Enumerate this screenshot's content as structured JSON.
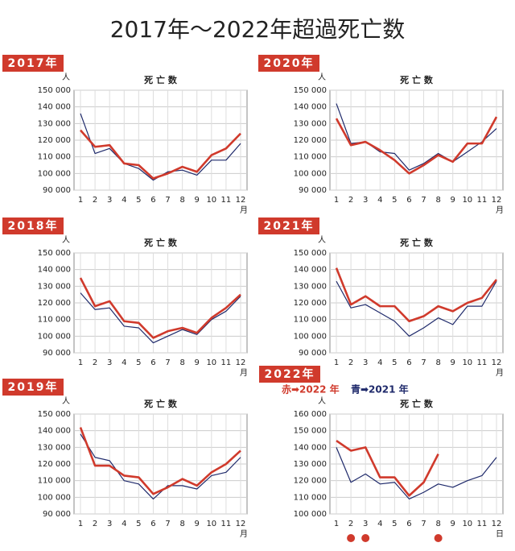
{
  "title": "2017年～2022年超過死亡数",
  "chart_data": [
    {
      "type": "line",
      "badge": "2017年",
      "title": "死 亡 数",
      "y_unit": "人",
      "x_unit": "月",
      "categories": [
        1,
        2,
        3,
        4,
        5,
        6,
        7,
        8,
        9,
        10,
        11,
        12
      ],
      "ylim": [
        90000,
        150000
      ],
      "yticks": [
        {
          "value": 90000,
          "label": "90 000"
        },
        {
          "value": 100000,
          "label": "100 000"
        },
        {
          "value": 110000,
          "label": "110 000"
        },
        {
          "value": 120000,
          "label": "120 000"
        },
        {
          "value": 130000,
          "label": "130 000"
        },
        {
          "value": 140000,
          "label": "140 000"
        },
        {
          "value": 150000,
          "label": "150 000"
        }
      ],
      "grid": true,
      "series": [
        {
          "color": "#1f2a6b",
          "values": [
            136000,
            112000,
            115000,
            106000,
            103000,
            96000,
            101000,
            102000,
            99000,
            108000,
            108000,
            118000
          ]
        },
        {
          "color": "#d03a2c",
          "values": [
            126000,
            116000,
            117000,
            106000,
            105000,
            97000,
            100000,
            104000,
            101000,
            111000,
            115000,
            124000
          ]
        }
      ]
    },
    {
      "type": "line",
      "badge": "2020年",
      "title": "死 亡 数",
      "y_unit": "人",
      "x_unit": "月",
      "categories": [
        1,
        2,
        3,
        4,
        5,
        6,
        7,
        8,
        9,
        10,
        11,
        12
      ],
      "ylim": [
        90000,
        150000
      ],
      "yticks": [
        {
          "value": 90000,
          "label": "90 000"
        },
        {
          "value": 100000,
          "label": "100 000"
        },
        {
          "value": 110000,
          "label": "110 000"
        },
        {
          "value": 120000,
          "label": "120 000"
        },
        {
          "value": 130000,
          "label": "130 000"
        },
        {
          "value": 140000,
          "label": "140 000"
        },
        {
          "value": 150000,
          "label": "150 000"
        }
      ],
      "grid": true,
      "series": [
        {
          "color": "#1f2a6b",
          "values": [
            142000,
            118000,
            119000,
            113000,
            112000,
            102000,
            106000,
            112000,
            107000,
            113000,
            119000,
            127000
          ]
        },
        {
          "color": "#d03a2c",
          "values": [
            133000,
            117000,
            119000,
            114000,
            108000,
            100000,
            105000,
            111000,
            107000,
            118000,
            118000,
            134000
          ]
        }
      ]
    },
    {
      "type": "line",
      "badge": "2018年",
      "title": "死 亡 数",
      "y_unit": "人",
      "x_unit": "月",
      "categories": [
        1,
        2,
        3,
        4,
        5,
        6,
        7,
        8,
        9,
        10,
        11,
        12
      ],
      "ylim": [
        90000,
        150000
      ],
      "yticks": [
        {
          "value": 90000,
          "label": "90 000"
        },
        {
          "value": 100000,
          "label": "100 000"
        },
        {
          "value": 110000,
          "label": "110 000"
        },
        {
          "value": 120000,
          "label": "120 000"
        },
        {
          "value": 130000,
          "label": "130 000"
        },
        {
          "value": 140000,
          "label": "140 000"
        },
        {
          "value": 150000,
          "label": "150 000"
        }
      ],
      "grid": true,
      "series": [
        {
          "color": "#1f2a6b",
          "values": [
            126000,
            116000,
            117000,
            106000,
            105000,
            96000,
            100000,
            104000,
            101000,
            110000,
            115000,
            124000
          ]
        },
        {
          "color": "#d03a2c",
          "values": [
            135000,
            118000,
            121000,
            109000,
            108000,
            99000,
            103000,
            105000,
            102000,
            111000,
            117000,
            125000
          ]
        }
      ]
    },
    {
      "type": "line",
      "badge": "2021年",
      "title": "死 亡 数",
      "y_unit": "人",
      "x_unit": "月",
      "categories": [
        1,
        2,
        3,
        4,
        5,
        6,
        7,
        8,
        9,
        10,
        11,
        12
      ],
      "ylim": [
        90000,
        150000
      ],
      "yticks": [
        {
          "value": 90000,
          "label": "90 000"
        },
        {
          "value": 100000,
          "label": "100 000"
        },
        {
          "value": 110000,
          "label": "110 000"
        },
        {
          "value": 120000,
          "label": "120 000"
        },
        {
          "value": 130000,
          "label": "130 000"
        },
        {
          "value": 140000,
          "label": "140 000"
        },
        {
          "value": 150000,
          "label": "150 000"
        }
      ],
      "grid": true,
      "series": [
        {
          "color": "#1f2a6b",
          "values": [
            133000,
            117000,
            119000,
            114000,
            109000,
            100000,
            105000,
            111000,
            107000,
            118000,
            118000,
            133000
          ]
        },
        {
          "color": "#d03a2c",
          "values": [
            141000,
            119000,
            124000,
            118000,
            118000,
            109000,
            112000,
            118000,
            115000,
            120000,
            123000,
            134000
          ]
        }
      ]
    },
    {
      "type": "line",
      "badge": "2019年",
      "title": "死 亡 数",
      "y_unit": "人",
      "x_unit": "月",
      "categories": [
        1,
        2,
        3,
        4,
        5,
        6,
        7,
        8,
        9,
        10,
        11,
        12
      ],
      "ylim": [
        90000,
        150000
      ],
      "yticks": [
        {
          "value": 90000,
          "label": "90 000"
        },
        {
          "value": 100000,
          "label": "100 000"
        },
        {
          "value": 110000,
          "label": "110 000"
        },
        {
          "value": 120000,
          "label": "120 000"
        },
        {
          "value": 130000,
          "label": "130 000"
        },
        {
          "value": 140000,
          "label": "140 000"
        },
        {
          "value": 150000,
          "label": "150 000"
        }
      ],
      "grid": true,
      "series": [
        {
          "color": "#1f2a6b",
          "values": [
            138000,
            124000,
            122000,
            110000,
            108000,
            99000,
            107000,
            107000,
            105000,
            113000,
            115000,
            124000
          ]
        },
        {
          "color": "#d03a2c",
          "values": [
            142000,
            119000,
            119000,
            113000,
            112000,
            102000,
            106000,
            111000,
            107000,
            115000,
            120000,
            128000
          ]
        }
      ]
    },
    {
      "type": "line",
      "badge": "2022年",
      "title": "死 亡 数",
      "y_unit": "人",
      "x_unit": "日",
      "categories": [
        1,
        2,
        3,
        4,
        5,
        6,
        7,
        8,
        9,
        10,
        11,
        12
      ],
      "ylim": [
        100000,
        160000
      ],
      "yticks": [
        {
          "value": 100000,
          "label": "100 000"
        },
        {
          "value": 110000,
          "label": "110 000"
        },
        {
          "value": 120000,
          "label": "120 000"
        },
        {
          "value": 130000,
          "label": "130 000"
        },
        {
          "value": 140000,
          "label": "140 000"
        },
        {
          "value": 150000,
          "label": "150 000"
        },
        {
          "value": 160000,
          "label": "160 000"
        }
      ],
      "grid": true,
      "marked": [
        2,
        3,
        8
      ],
      "series": [
        {
          "name": "青➡2021 年",
          "color": "#1f2a6b",
          "values": [
            140000,
            119000,
            124000,
            118000,
            119000,
            109000,
            113000,
            118000,
            116000,
            120000,
            123000,
            134000
          ]
        },
        {
          "name": "赤➡2022 年",
          "color": "#d03a2c",
          "values": [
            144000,
            138000,
            140000,
            122000,
            122000,
            111000,
            119000,
            136000,
            null,
            null,
            null,
            null
          ]
        }
      ]
    }
  ]
}
